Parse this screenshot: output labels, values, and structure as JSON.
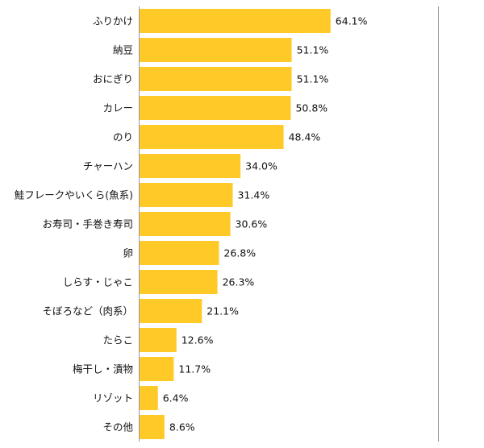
{
  "chart_data": {
    "type": "bar",
    "orientation": "horizontal",
    "categories": [
      "ふりかけ",
      "納豆",
      "おにぎり",
      "カレー",
      "のり",
      "チャーハン",
      "鮭フレークやいくら(魚系)",
      "お寿司・手巻き寿司",
      "卵",
      "しらす・じゃこ",
      "そぼろなど（肉系）",
      "たらこ",
      "梅干し・漬物",
      "リゾット",
      "その他"
    ],
    "values": [
      64.1,
      51.1,
      51.1,
      50.8,
      48.4,
      34.0,
      31.4,
      30.6,
      26.8,
      26.3,
      21.1,
      12.6,
      11.7,
      6.4,
      8.6
    ],
    "value_labels": [
      "64.1%",
      "51.1%",
      "51.1%",
      "50.8%",
      "48.4%",
      "34.0%",
      "31.4%",
      "30.6%",
      "26.8%",
      "26.3%",
      "21.1%",
      "12.6%",
      "11.7%",
      "6.4%",
      "8.6%"
    ],
    "unit": "%",
    "xlim": [
      0,
      100
    ],
    "title": "",
    "xlabel": "",
    "ylabel": "",
    "grid": false,
    "legend": "none",
    "colors": {
      "bar": "#FFC928",
      "axis": "#999999"
    }
  }
}
